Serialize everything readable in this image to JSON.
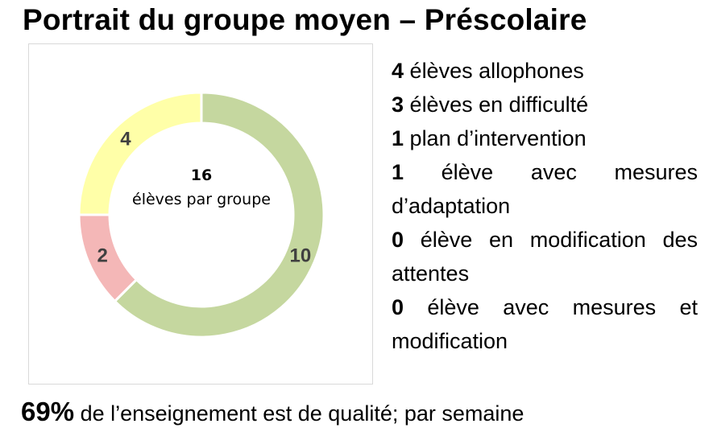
{
  "title": "Portrait du groupe moyen – Préscolaire",
  "chart_data": {
    "type": "pie",
    "categories": [
      "",
      "",
      ""
    ],
    "values": [
      10,
      2,
      4
    ],
    "colors": [
      "#c5d79f",
      "#f4b7b7",
      "#ffffa8"
    ],
    "center_total": "16",
    "center_caption": "élèves par groupe"
  },
  "stats": [
    {
      "count": "4",
      "text": "élèves allophones"
    },
    {
      "count": "3",
      "text": "élèves en difficulté"
    },
    {
      "count": "1",
      "text": "plan d’intervention"
    },
    {
      "count": "1",
      "text": "élève avec mesures d’adaptation"
    },
    {
      "count": "0",
      "text": "élève en modification des attentes"
    },
    {
      "count": "0",
      "text": "élève avec mesures et modification"
    }
  ],
  "footer": {
    "percent": "69%",
    "text": "de l’enseignement est de qualité; par semaine"
  }
}
